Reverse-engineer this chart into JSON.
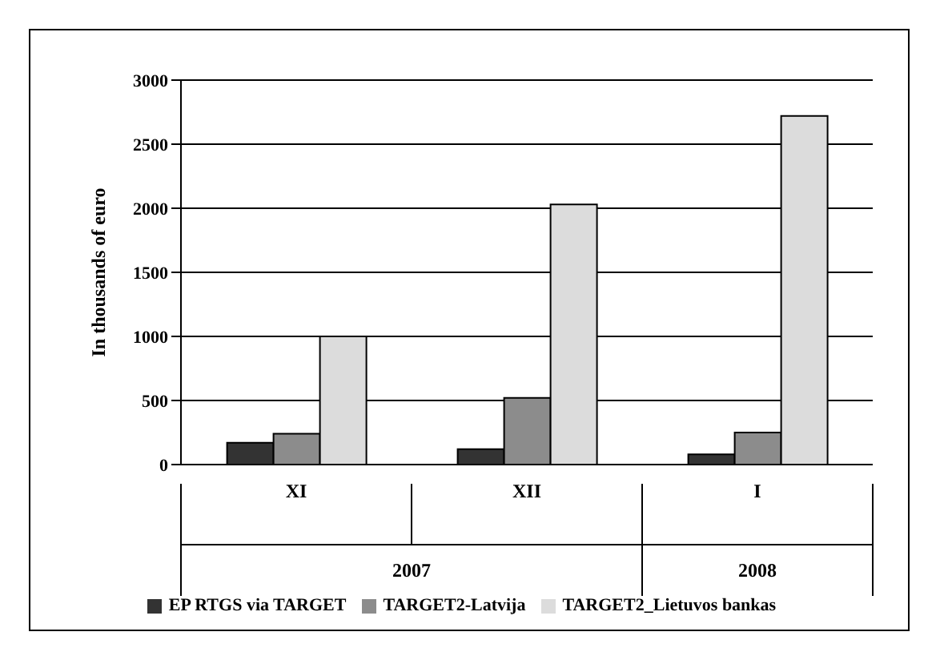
{
  "chart_data": {
    "type": "bar",
    "ylabel": "In thousands of euro",
    "categories": [
      "XI",
      "XII",
      "I"
    ],
    "series": [
      {
        "name": "EP RTGS via TARGET",
        "color": "#333333",
        "values": [
          170,
          120,
          80
        ]
      },
      {
        "name": "TARGET2-Latvija",
        "color": "#8c8c8c",
        "values": [
          240,
          520,
          250
        ]
      },
      {
        "name": "TARGET2_Lietuvos bankas",
        "color": "#dcdcdc",
        "values": [
          1000,
          2030,
          2720
        ]
      }
    ],
    "ylim": [
      0,
      3000
    ],
    "yticks": [
      0,
      500,
      1000,
      1500,
      2000,
      2500,
      3000
    ],
    "grid": "y",
    "legend": "bottom",
    "annotations": [
      "2007",
      "2008"
    ]
  }
}
